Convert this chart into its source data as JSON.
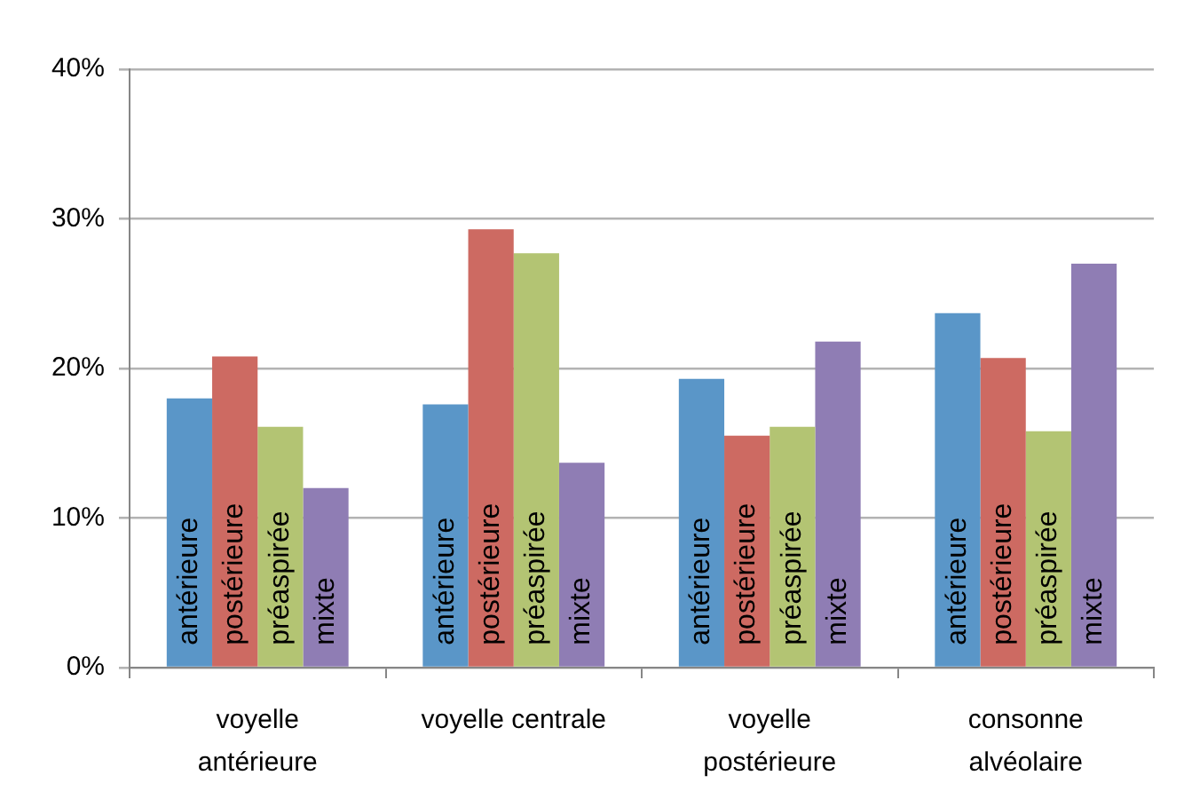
{
  "chart_data": {
    "type": "bar",
    "categories": [
      "voyelle antérieure",
      "voyelle centrale",
      "voyelle postérieure",
      "consonne alvéolaire"
    ],
    "series": [
      {
        "name": "antérieure",
        "color": "#5a96c8",
        "values": [
          18.0,
          17.6,
          19.3,
          23.7
        ]
      },
      {
        "name": "postérieure",
        "color": "#cd6a62",
        "values": [
          20.8,
          29.3,
          15.5,
          20.7
        ]
      },
      {
        "name": "préaspirée",
        "color": "#b3c473",
        "values": [
          16.1,
          27.7,
          16.1,
          15.8
        ]
      },
      {
        "name": "mixte",
        "color": "#8f7db4",
        "values": [
          12.0,
          13.7,
          21.8,
          27.0
        ]
      }
    ],
    "ylim": [
      0,
      40
    ],
    "yticks": [
      {
        "value": 0,
        "label": "0%"
      },
      {
        "value": 10,
        "label": "10%"
      },
      {
        "value": 20,
        "label": "20%"
      },
      {
        "value": 30,
        "label": "30%"
      },
      {
        "value": 40,
        "label": "40%"
      }
    ],
    "grid": "y"
  }
}
